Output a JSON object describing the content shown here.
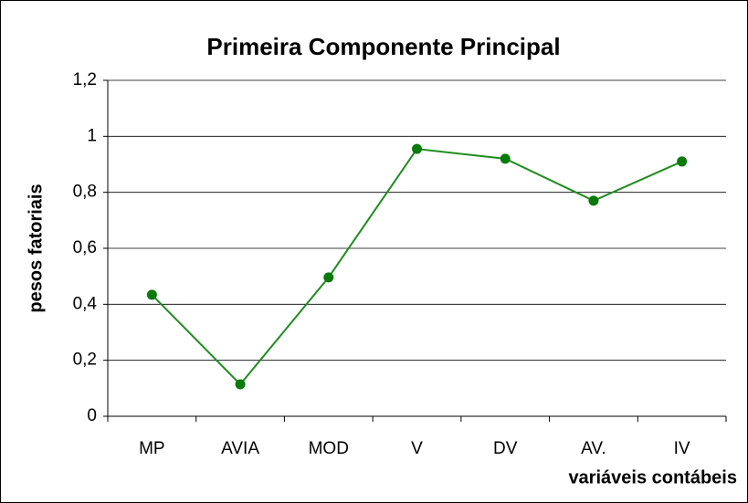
{
  "chart_data": {
    "type": "line",
    "title": "Primeira Componente Principal",
    "x_label": "variáveis contábeis",
    "y_label": "pesos fatoriais",
    "categories": [
      "MP",
      "AVIA",
      "MOD",
      "V",
      "DV",
      "AV.",
      "IV"
    ],
    "series": [
      {
        "name": "Primeira Componente Principal",
        "color": "#1f8c1f",
        "values": [
          0.434,
          0.114,
          0.496,
          0.955,
          0.92,
          0.77,
          0.91
        ]
      }
    ],
    "ylim": [
      0,
      1.2
    ],
    "yticks": [
      0,
      {
        "value": 0.2,
        "label": "0,2"
      },
      {
        "value": 0.4,
        "label": "0,4"
      },
      {
        "value": 0.6,
        "label": "0,6"
      },
      {
        "value": 0.8,
        "label": "0,8"
      },
      1,
      {
        "value": 1.2,
        "label": "1,2"
      }
    ],
    "grid": true
  }
}
